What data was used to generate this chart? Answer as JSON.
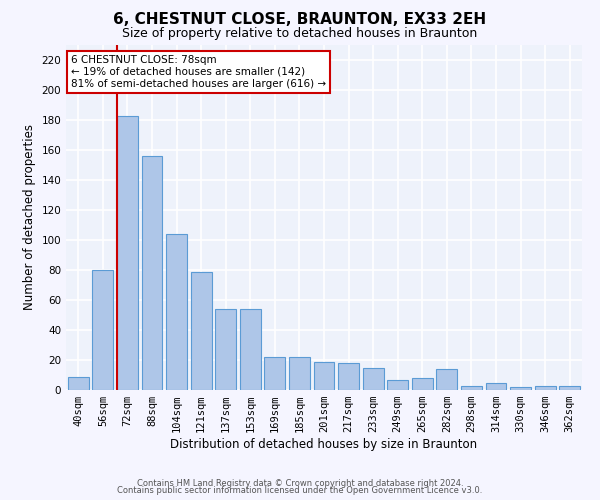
{
  "title": "6, CHESTNUT CLOSE, BRAUNTON, EX33 2EH",
  "subtitle": "Size of property relative to detached houses in Braunton",
  "xlabel": "Distribution of detached houses by size in Braunton",
  "ylabel": "Number of detached properties",
  "footnote1": "Contains HM Land Registry data © Crown copyright and database right 2024.",
  "footnote2": "Contains public sector information licensed under the Open Government Licence v3.0.",
  "categories": [
    "40sqm",
    "56sqm",
    "72sqm",
    "88sqm",
    "104sqm",
    "121sqm",
    "137sqm",
    "153sqm",
    "169sqm",
    "185sqm",
    "201sqm",
    "217sqm",
    "233sqm",
    "249sqm",
    "265sqm",
    "282sqm",
    "298sqm",
    "314sqm",
    "330sqm",
    "346sqm",
    "362sqm"
  ],
  "values": [
    9,
    80,
    183,
    156,
    104,
    79,
    54,
    54,
    22,
    22,
    19,
    18,
    15,
    7,
    8,
    14,
    3,
    5,
    2,
    3,
    3
  ],
  "bar_color": "#aec6e8",
  "bar_edge_color": "#5b9bd5",
  "red_line_index": 2,
  "red_line_color": "#cc0000",
  "annotation_line1": "6 CHESTNUT CLOSE: 78sqm",
  "annotation_line2": "← 19% of detached houses are smaller (142)",
  "annotation_line3": "81% of semi-detached houses are larger (616) →",
  "annotation_box_color": "#ffffff",
  "annotation_box_edge_color": "#cc0000",
  "ylim": [
    0,
    230
  ],
  "yticks": [
    0,
    20,
    40,
    60,
    80,
    100,
    120,
    140,
    160,
    180,
    200,
    220
  ],
  "bg_color": "#eef2fb",
  "grid_color": "#ffffff",
  "title_fontsize": 11,
  "subtitle_fontsize": 9,
  "axis_label_fontsize": 8.5,
  "tick_fontsize": 7.5,
  "annotation_fontsize": 7.5
}
